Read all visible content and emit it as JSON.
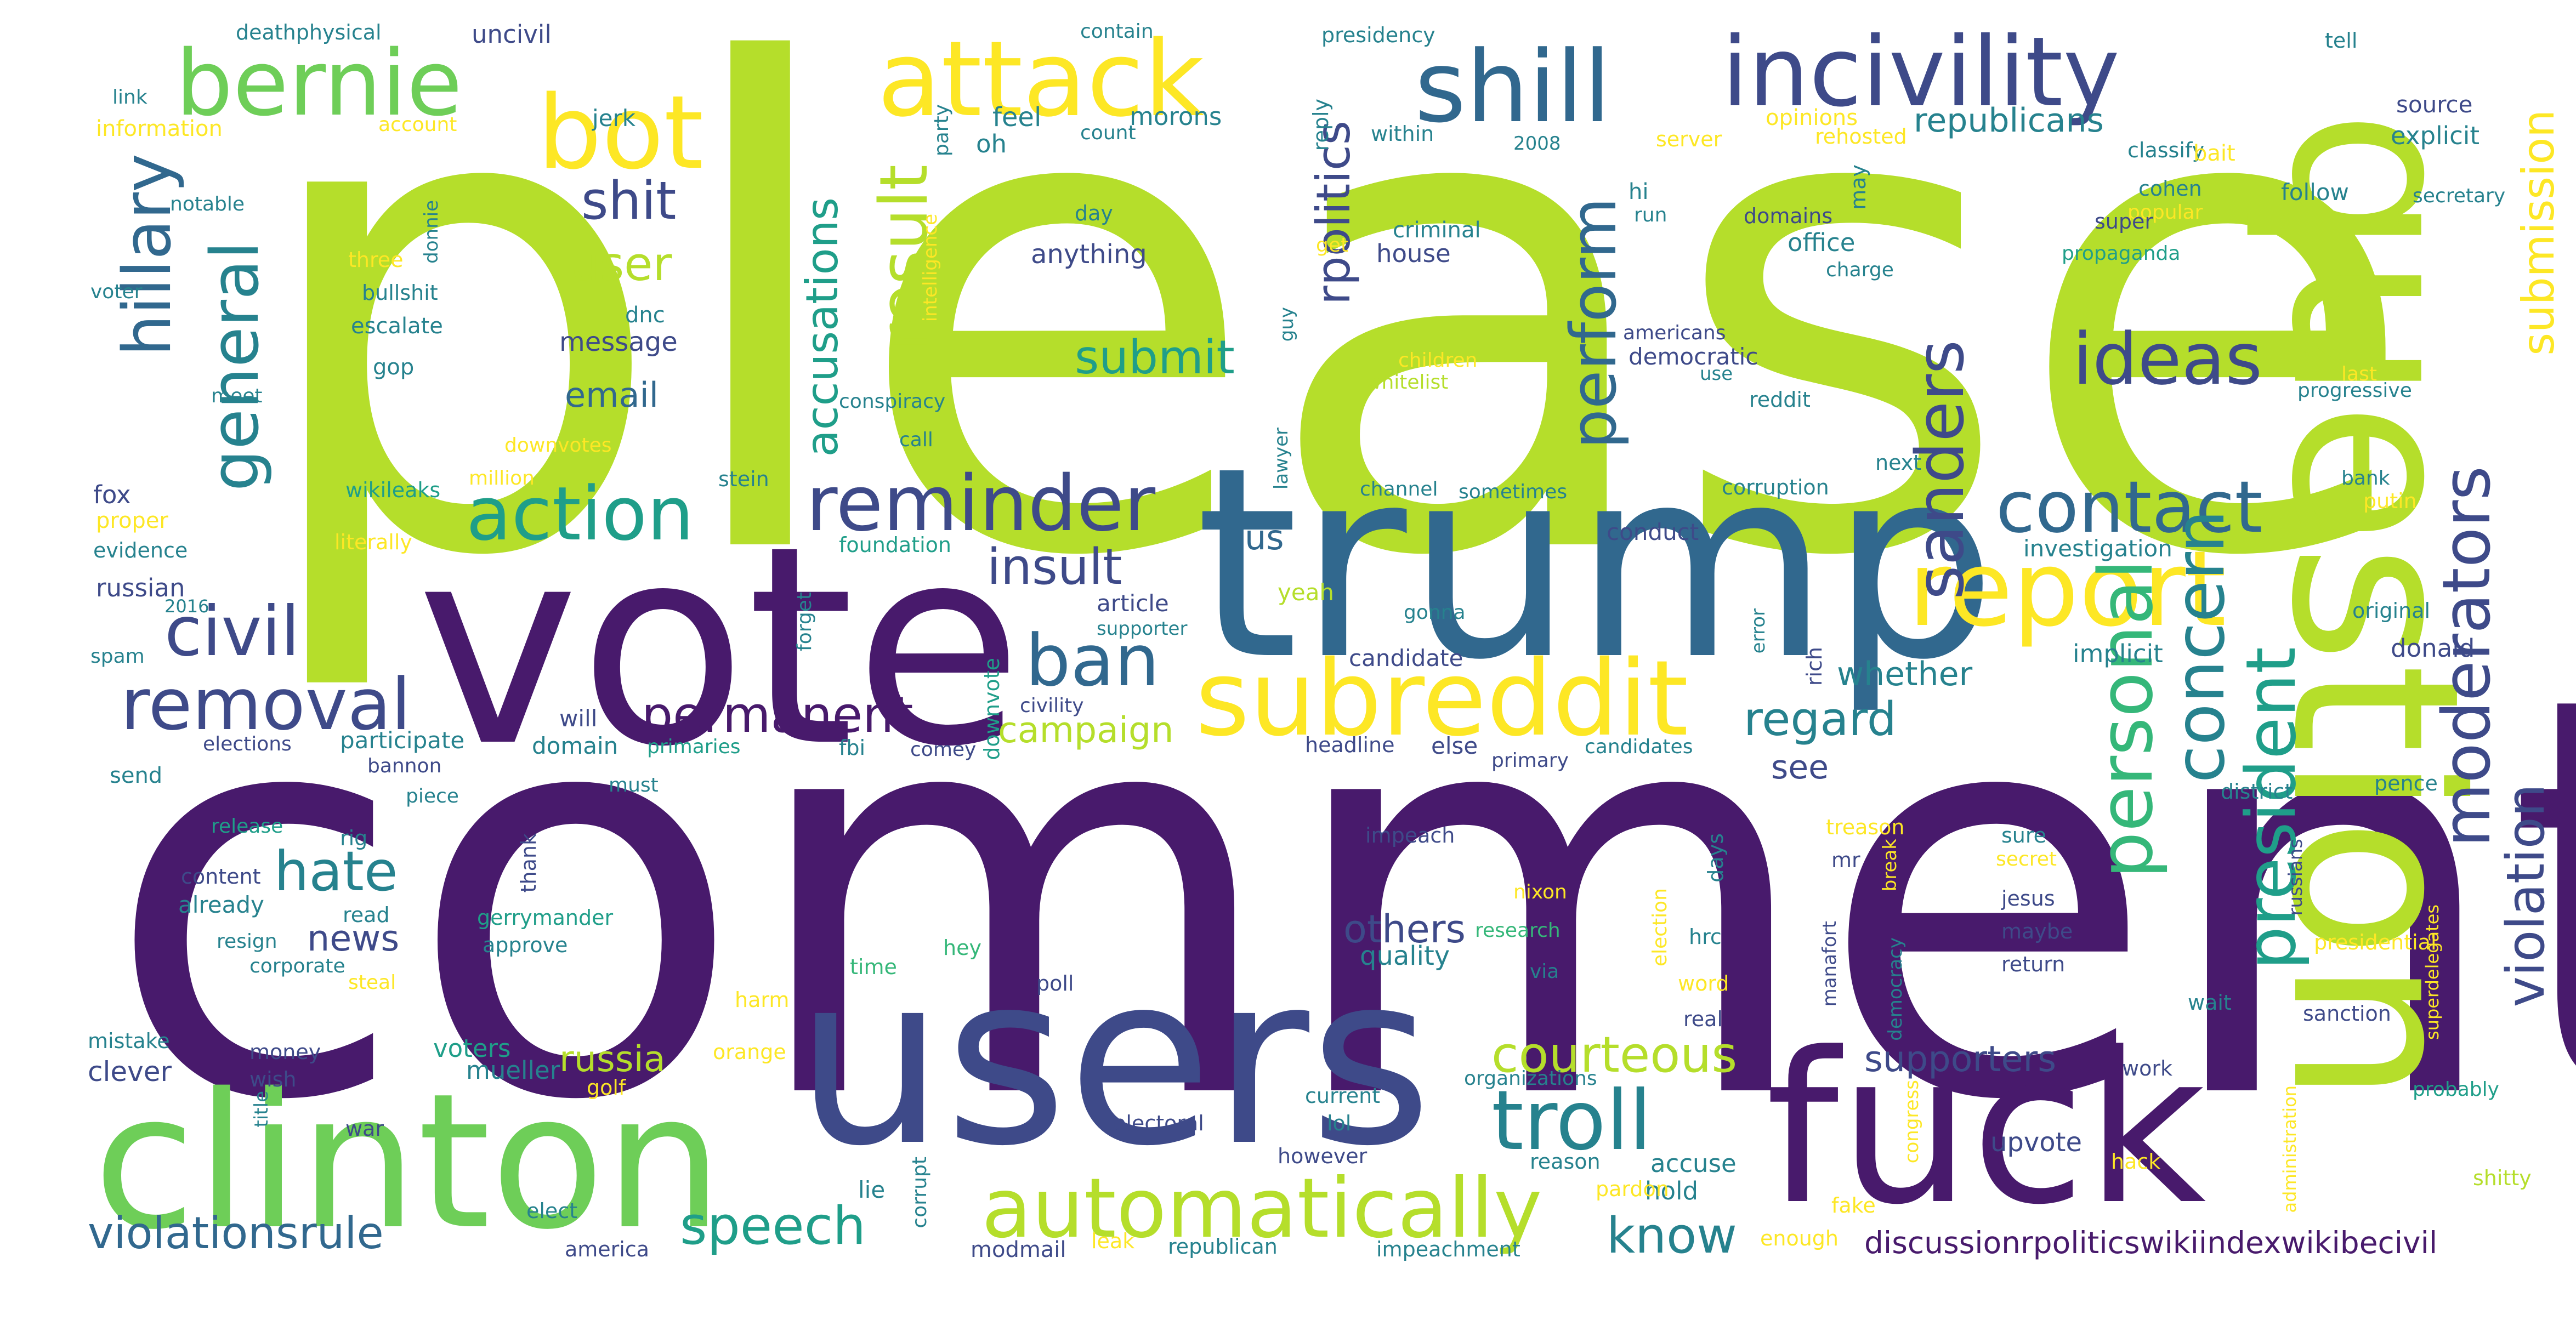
{
  "palette": {
    "purple": "#481a6c",
    "indigo": "#3e4a89",
    "blue": "#31688e",
    "teal": "#26828e",
    "green": "#1f9e89",
    "jade": "#35b779",
    "lime": "#6ece58",
    "chartreuse": "#b5de2b",
    "yellow": "#fde725"
  },
  "words": [
    {
      "text": "please",
      "color": "chartreuse"
    },
    {
      "text": "comment",
      "color": "purple"
    },
    {
      "text": "trump",
      "color": "blue"
    },
    {
      "text": "vote",
      "color": "purple"
    },
    {
      "text": "question",
      "color": "chartreuse"
    },
    {
      "text": "users",
      "color": "indigo"
    },
    {
      "text": "fuck",
      "color": "purple"
    },
    {
      "text": "clinton",
      "color": "lime"
    },
    {
      "text": "incivility",
      "color": "indigo"
    },
    {
      "text": "shill",
      "color": "blue"
    },
    {
      "text": "attack",
      "color": "yellow"
    },
    {
      "text": "bernie",
      "color": "lime"
    },
    {
      "text": "bot",
      "color": "yellow"
    },
    {
      "text": "report",
      "color": "yellow"
    },
    {
      "text": "subreddit",
      "color": "yellow"
    },
    {
      "text": "automatically",
      "color": "chartreuse"
    },
    {
      "text": "reminder",
      "color": "indigo"
    },
    {
      "text": "action",
      "color": "green"
    },
    {
      "text": "contact",
      "color": "blue"
    },
    {
      "text": "troll",
      "color": "teal"
    },
    {
      "text": "removal",
      "color": "indigo"
    },
    {
      "text": "hillary",
      "color": "blue"
    },
    {
      "text": "general",
      "color": "teal"
    },
    {
      "text": "civil",
      "color": "indigo"
    },
    {
      "text": "ban",
      "color": "blue"
    },
    {
      "text": "personal",
      "color": "jade"
    },
    {
      "text": "concern",
      "color": "teal"
    },
    {
      "text": "president",
      "color": "green"
    },
    {
      "text": "moderators",
      "color": "indigo"
    },
    {
      "text": "violation",
      "color": "indigo"
    },
    {
      "text": "perform",
      "color": "blue"
    },
    {
      "text": "sanders",
      "color": "indigo"
    },
    {
      "text": "ideas",
      "color": "indigo"
    },
    {
      "text": "result",
      "color": "chartreuse"
    },
    {
      "text": "accusations",
      "color": "green"
    },
    {
      "text": "submission",
      "color": "yellow"
    },
    {
      "text": "rpolitics",
      "color": "indigo"
    },
    {
      "text": "permanent",
      "color": "purple"
    },
    {
      "text": "insult",
      "color": "indigo"
    },
    {
      "text": "hate",
      "color": "teal"
    },
    {
      "text": "shit",
      "color": "indigo"
    },
    {
      "text": "user",
      "color": "chartreuse"
    },
    {
      "text": "submit",
      "color": "green"
    },
    {
      "text": "speech",
      "color": "green"
    },
    {
      "text": "know",
      "color": "teal"
    },
    {
      "text": "courteous",
      "color": "chartreuse"
    },
    {
      "text": "violationsrule",
      "color": "blue"
    },
    {
      "text": "discussionrpoliticswikiindexwikibecivil",
      "color": "purple"
    },
    {
      "text": "regard",
      "color": "teal"
    },
    {
      "text": "republicans",
      "color": "teal"
    },
    {
      "text": "campaign",
      "color": "chartreuse"
    },
    {
      "text": "russia",
      "color": "chartreuse"
    },
    {
      "text": "others",
      "color": "indigo"
    },
    {
      "text": "supporters",
      "color": "indigo"
    },
    {
      "text": "whether",
      "color": "teal"
    },
    {
      "text": "email",
      "color": "blue"
    },
    {
      "text": "news",
      "color": "indigo"
    },
    {
      "text": "us",
      "color": "blue"
    },
    {
      "text": "see",
      "color": "indigo"
    },
    {
      "text": "office",
      "color": "teal"
    },
    {
      "text": "anything",
      "color": "indigo"
    },
    {
      "text": "message",
      "color": "indigo"
    },
    {
      "text": "mueller",
      "color": "teal"
    },
    {
      "text": "voters",
      "color": "green"
    },
    {
      "text": "clever",
      "color": "indigo"
    },
    {
      "text": "quality",
      "color": "teal"
    },
    {
      "text": "upvote",
      "color": "indigo"
    },
    {
      "text": "accuse",
      "color": "teal"
    },
    {
      "text": "hold",
      "color": "teal"
    },
    {
      "text": "feel",
      "color": "teal"
    },
    {
      "text": "oh",
      "color": "teal"
    },
    {
      "text": "morons",
      "color": "teal"
    },
    {
      "text": "explicit",
      "color": "teal"
    },
    {
      "text": "source",
      "color": "indigo"
    },
    {
      "text": "follow",
      "color": "teal"
    },
    {
      "text": "donald",
      "color": "indigo"
    },
    {
      "text": "implicit",
      "color": "teal"
    },
    {
      "text": "investigation",
      "color": "teal"
    },
    {
      "text": "dnc",
      "color": "teal"
    },
    {
      "text": "candidate",
      "color": "indigo"
    },
    {
      "text": "article",
      "color": "indigo"
    },
    {
      "text": "yeah",
      "color": "chartreuse"
    },
    {
      "text": "russian",
      "color": "indigo"
    },
    {
      "text": "fox",
      "color": "indigo"
    },
    {
      "text": "gop",
      "color": "teal"
    },
    {
      "text": "escalate",
      "color": "teal"
    },
    {
      "text": "will",
      "color": "indigo"
    },
    {
      "text": "domain",
      "color": "teal"
    },
    {
      "text": "participate",
      "color": "teal"
    },
    {
      "text": "conduct",
      "color": "indigo"
    },
    {
      "text": "democratic",
      "color": "indigo"
    },
    {
      "text": "house",
      "color": "indigo"
    },
    {
      "text": "criminal",
      "color": "teal"
    },
    {
      "text": "uncivil",
      "color": "indigo"
    },
    {
      "text": "jerk",
      "color": "teal"
    },
    {
      "text": "deathphysical",
      "color": "teal"
    },
    {
      "text": "link",
      "color": "teal"
    },
    {
      "text": "information",
      "color": "yellow"
    },
    {
      "text": "account",
      "color": "yellow"
    },
    {
      "text": "contain",
      "color": "teal"
    },
    {
      "text": "count",
      "color": "teal"
    },
    {
      "text": "presidency",
      "color": "teal"
    },
    {
      "text": "reply",
      "color": "teal"
    },
    {
      "text": "within",
      "color": "teal"
    },
    {
      "text": "2008",
      "color": "teal"
    },
    {
      "text": "opinions",
      "color": "yellow"
    },
    {
      "text": "rehosted",
      "color": "yellow"
    },
    {
      "text": "server",
      "color": "yellow"
    },
    {
      "text": "classify",
      "color": "teal"
    },
    {
      "text": "tell",
      "color": "teal"
    },
    {
      "text": "party",
      "color": "teal"
    },
    {
      "text": "notable",
      "color": "teal"
    },
    {
      "text": "donnie",
      "color": "teal"
    },
    {
      "text": "three",
      "color": "yellow"
    },
    {
      "text": "bullshit",
      "color": "teal"
    },
    {
      "text": "voter",
      "color": "teal"
    },
    {
      "text": "meet",
      "color": "teal"
    },
    {
      "text": "intelligence",
      "color": "yellow"
    },
    {
      "text": "day",
      "color": "teal"
    },
    {
      "text": "get",
      "color": "yellow"
    },
    {
      "text": "guy",
      "color": "teal"
    },
    {
      "text": "hi",
      "color": "teal"
    },
    {
      "text": "run",
      "color": "teal"
    },
    {
      "text": "domains",
      "color": "indigo"
    },
    {
      "text": "may",
      "color": "teal"
    },
    {
      "text": "cohen",
      "color": "teal"
    },
    {
      "text": "popular",
      "color": "yellow"
    },
    {
      "text": "bait",
      "color": "yellow"
    },
    {
      "text": "super",
      "color": "indigo"
    },
    {
      "text": "secretary",
      "color": "teal"
    },
    {
      "text": "propaganda",
      "color": "green"
    },
    {
      "text": "charge",
      "color": "teal"
    },
    {
      "text": "americans",
      "color": "indigo"
    },
    {
      "text": "use",
      "color": "teal"
    },
    {
      "text": "children",
      "color": "yellow"
    },
    {
      "text": "whitelist",
      "color": "chartreuse"
    },
    {
      "text": "reddit",
      "color": "teal"
    },
    {
      "text": "progressive",
      "color": "teal"
    },
    {
      "text": "last",
      "color": "yellow"
    },
    {
      "text": "conspiracy",
      "color": "teal"
    },
    {
      "text": "call",
      "color": "teal"
    },
    {
      "text": "downvotes",
      "color": "yellow"
    },
    {
      "text": "lawyer",
      "color": "teal"
    },
    {
      "text": "next",
      "color": "teal"
    },
    {
      "text": "million",
      "color": "yellow"
    },
    {
      "text": "stein",
      "color": "teal"
    },
    {
      "text": "wikileaks",
      "color": "green"
    },
    {
      "text": "proper",
      "color": "yellow"
    },
    {
      "text": "literally",
      "color": "yellow"
    },
    {
      "text": "evidence",
      "color": "teal"
    },
    {
      "text": "foundation",
      "color": "green"
    },
    {
      "text": "channel",
      "color": "teal"
    },
    {
      "text": "sometimes",
      "color": "teal"
    },
    {
      "text": "corruption",
      "color": "teal"
    },
    {
      "text": "bank",
      "color": "teal"
    },
    {
      "text": "putin",
      "color": "yellow"
    },
    {
      "text": "original",
      "color": "teal"
    },
    {
      "text": "2016",
      "color": "teal"
    },
    {
      "text": "forget",
      "color": "teal"
    },
    {
      "text": "supporter",
      "color": "teal"
    },
    {
      "text": "gonna",
      "color": "teal"
    },
    {
      "text": "error",
      "color": "teal"
    },
    {
      "text": "rich",
      "color": "indigo"
    },
    {
      "text": "spam",
      "color": "teal"
    },
    {
      "text": "downvote",
      "color": "green"
    },
    {
      "text": "civility",
      "color": "indigo"
    },
    {
      "text": "send",
      "color": "teal"
    },
    {
      "text": "elections",
      "color": "indigo"
    },
    {
      "text": "primaries",
      "color": "green"
    },
    {
      "text": "fbi",
      "color": "teal"
    },
    {
      "text": "comey",
      "color": "indigo"
    },
    {
      "text": "headline",
      "color": "indigo"
    },
    {
      "text": "else",
      "color": "indigo"
    },
    {
      "text": "candidates",
      "color": "teal"
    },
    {
      "text": "primary",
      "color": "indigo"
    },
    {
      "text": "bannon",
      "color": "indigo"
    },
    {
      "text": "piece",
      "color": "teal"
    },
    {
      "text": "must",
      "color": "teal"
    },
    {
      "text": "release",
      "color": "green"
    },
    {
      "text": "rig",
      "color": "teal"
    },
    {
      "text": "content",
      "color": "indigo"
    },
    {
      "text": "already",
      "color": "teal"
    },
    {
      "text": "resign",
      "color": "teal"
    },
    {
      "text": "read",
      "color": "teal"
    },
    {
      "text": "thank",
      "color": "indigo"
    },
    {
      "text": "gerrymander",
      "color": "green"
    },
    {
      "text": "approve",
      "color": "teal"
    },
    {
      "text": "corporate",
      "color": "teal"
    },
    {
      "text": "steal",
      "color": "yellow"
    },
    {
      "text": "impeach",
      "color": "indigo"
    },
    {
      "text": "district",
      "color": "teal"
    },
    {
      "text": "pence",
      "color": "teal"
    },
    {
      "text": "treason",
      "color": "yellow"
    },
    {
      "text": "sure",
      "color": "teal"
    },
    {
      "text": "secret",
      "color": "yellow"
    },
    {
      "text": "nixon",
      "color": "yellow"
    },
    {
      "text": "research",
      "color": "jade"
    },
    {
      "text": "election",
      "color": "yellow"
    },
    {
      "text": "days",
      "color": "teal"
    },
    {
      "text": "hrc",
      "color": "teal"
    },
    {
      "text": "mr",
      "color": "indigo"
    },
    {
      "text": "jesus",
      "color": "indigo"
    },
    {
      "text": "break",
      "color": "yellow"
    },
    {
      "text": "russians",
      "color": "indigo"
    },
    {
      "text": "maybe",
      "color": "indigo"
    },
    {
      "text": "return",
      "color": "indigo"
    },
    {
      "text": "presidential",
      "color": "yellow"
    },
    {
      "text": "time",
      "color": "jade"
    },
    {
      "text": "hey",
      "color": "jade"
    },
    {
      "text": "via",
      "color": "teal"
    },
    {
      "text": "word",
      "color": "yellow"
    },
    {
      "text": "poll",
      "color": "indigo"
    },
    {
      "text": "harm",
      "color": "yellow"
    },
    {
      "text": "manafort",
      "color": "indigo"
    },
    {
      "text": "democracy",
      "color": "teal"
    },
    {
      "text": "wait",
      "color": "teal"
    },
    {
      "text": "sanction",
      "color": "indigo"
    },
    {
      "text": "superdelegates",
      "color": "yellow"
    },
    {
      "text": "mistake",
      "color": "teal"
    },
    {
      "text": "money",
      "color": "indigo"
    },
    {
      "text": "wish",
      "color": "indigo"
    },
    {
      "text": "orange",
      "color": "yellow"
    },
    {
      "text": "real",
      "color": "indigo"
    },
    {
      "text": "golf",
      "color": "yellow"
    },
    {
      "text": "organizations",
      "color": "teal"
    },
    {
      "text": "work",
      "color": "indigo"
    },
    {
      "text": "title",
      "color": "teal"
    },
    {
      "text": "war",
      "color": "indigo"
    },
    {
      "text": "current",
      "color": "teal"
    },
    {
      "text": "electoral",
      "color": "indigo"
    },
    {
      "text": "lol",
      "color": "teal"
    },
    {
      "text": "probably",
      "color": "green"
    },
    {
      "text": "congress",
      "color": "yellow"
    },
    {
      "text": "however",
      "color": "indigo"
    },
    {
      "text": "reason",
      "color": "teal"
    },
    {
      "text": "hack",
      "color": "yellow"
    },
    {
      "text": "administration",
      "color": "yellow"
    },
    {
      "text": "shitty",
      "color": "chartreuse"
    },
    {
      "text": "elect",
      "color": "teal"
    },
    {
      "text": "lie",
      "color": "teal"
    },
    {
      "text": "corrupt",
      "color": "teal"
    },
    {
      "text": "pardon",
      "color": "yellow"
    },
    {
      "text": "fake",
      "color": "yellow"
    },
    {
      "text": "america",
      "color": "indigo"
    },
    {
      "text": "modmail",
      "color": "indigo"
    },
    {
      "text": "leak",
      "color": "yellow"
    },
    {
      "text": "republican",
      "color": "teal"
    },
    {
      "text": "impeachment",
      "color": "teal"
    },
    {
      "text": "enough",
      "color": "yellow"
    }
  ]
}
